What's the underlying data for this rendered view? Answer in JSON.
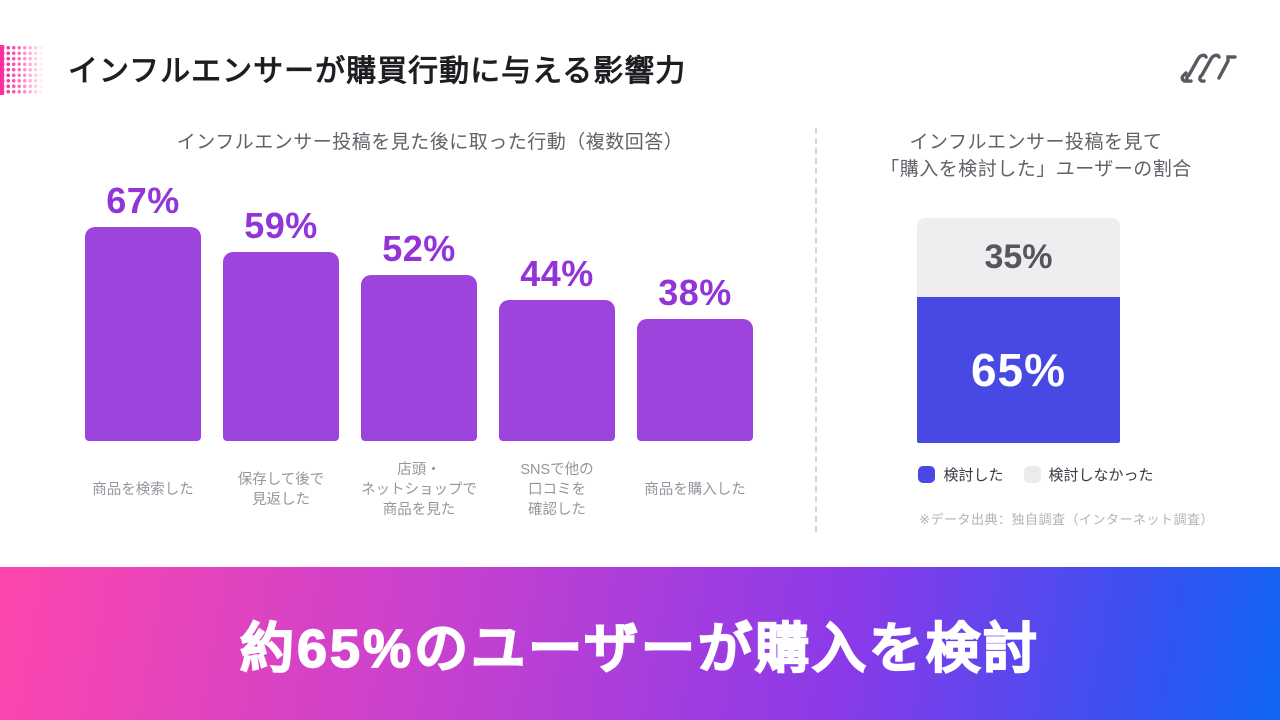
{
  "header": {
    "title": "インフルエンサーが購買行動に与える影響力"
  },
  "banner": {
    "text": "約65%のユーザーが購入を検討"
  },
  "colors": {
    "bar_purple": "#9c44dc",
    "value_label_purple": "#9334d8",
    "considered_blue": "#4749e2",
    "not_considered_gray": "#efedf0",
    "banner_gradient_start": "#fd46ad",
    "banner_gradient_end": "#0f66f3",
    "accent_pink": "#ff2f9f"
  },
  "chart_data": [
    {
      "type": "bar",
      "title": "インフルエンサー投稿を見た後に取った行動（複数回答）",
      "categories": [
        "商品を検索した",
        "保存して後で\n見返した",
        "店頭・\nネットショップで\n商品を見た",
        "SNSで他の\n口コミを\n確認した",
        "商品を購入した"
      ],
      "values": [
        67,
        59,
        52,
        44,
        38
      ],
      "value_suffix": "%",
      "ylim": [
        0,
        100
      ],
      "grid": false,
      "bar_color": "#9c44dc"
    },
    {
      "type": "bar",
      "subtype": "stacked-single-column",
      "title": "インフルエンサー投稿を見て\n「購入を検討した」ユーザーの割合",
      "series": [
        {
          "name": "検討した",
          "value": 65,
          "color": "#4749e2"
        },
        {
          "name": "検討しなかった",
          "value": 35,
          "color": "#efedf0"
        }
      ],
      "value_suffix": "%",
      "legend_position": "bottom",
      "footnote": "※データ出典：独自調査（インターネット調査）"
    }
  ]
}
